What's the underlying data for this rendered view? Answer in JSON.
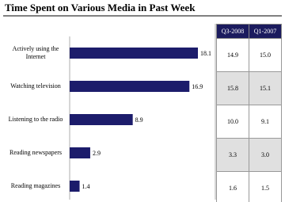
{
  "chart_data": {
    "type": "bar",
    "orientation": "horizontal",
    "title": "Time Spent on Various Media in Past Week",
    "categories": [
      "Actively using the Internet",
      "Watching television",
      "Listening to the radio",
      "Reading newspapers",
      "Reading magazines"
    ],
    "values": [
      18.1,
      16.9,
      8.9,
      2.9,
      1.4
    ],
    "color": "#1c1c6b"
  },
  "table": {
    "header": [
      "Q3-2008",
      "Q1-2007"
    ],
    "rows": [
      [
        "14.9",
        "15.0"
      ],
      [
        "15.8",
        "15.1"
      ],
      [
        "10.0",
        "9.1"
      ],
      [
        "3.3",
        "3.0"
      ],
      [
        "1.6",
        "1.5"
      ]
    ]
  }
}
